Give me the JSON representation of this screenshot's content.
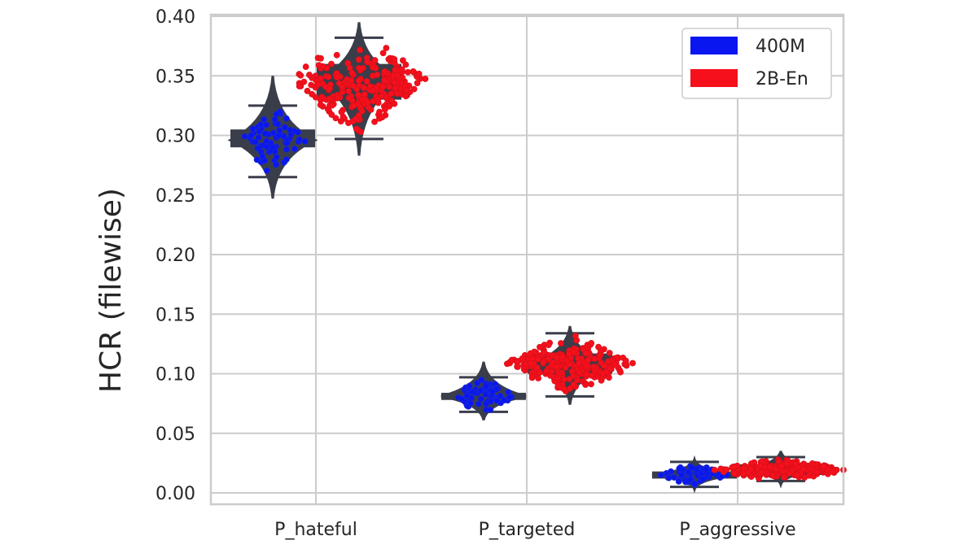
{
  "chart_data": {
    "type": "violin-box-swarm",
    "title": "",
    "xlabel": "",
    "ylabel": "HCR (filewise)",
    "ylim": [
      0.0,
      0.4
    ],
    "yticks": [
      "0.00",
      "0.05",
      "0.10",
      "0.15",
      "0.20",
      "0.25",
      "0.30",
      "0.35",
      "0.40"
    ],
    "categories": [
      "P_hateful",
      "P_targeted",
      "P_aggressive"
    ],
    "grid": true,
    "legend_placement": "top-right",
    "series": [
      {
        "name": "400M",
        "color": "#0a16f0",
        "stats": [
          {
            "min": 0.247,
            "whisker_low": 0.265,
            "q1": 0.29,
            "median": 0.296,
            "q3": 0.305,
            "whisker_high": 0.325,
            "max": 0.35
          },
          {
            "min": 0.061,
            "whisker_low": 0.068,
            "q1": 0.078,
            "median": 0.081,
            "q3": 0.084,
            "whisker_high": 0.097,
            "max": 0.11
          },
          {
            "min": 0.003,
            "whisker_low": 0.005,
            "q1": 0.012,
            "median": 0.015,
            "q3": 0.018,
            "whisker_high": 0.026,
            "max": 0.028
          }
        ]
      },
      {
        "name": "2B-En",
        "color": "#f5101c",
        "stats": [
          {
            "min": 0.283,
            "whisker_low": 0.297,
            "q1": 0.33,
            "median": 0.347,
            "q3": 0.36,
            "whisker_high": 0.382,
            "max": 0.395
          },
          {
            "min": 0.074,
            "whisker_low": 0.081,
            "q1": 0.1,
            "median": 0.108,
            "q3": 0.117,
            "whisker_high": 0.134,
            "max": 0.14
          },
          {
            "min": 0.007,
            "whisker_low": 0.01,
            "q1": 0.015,
            "median": 0.019,
            "q3": 0.024,
            "whisker_high": 0.03,
            "max": 0.035
          }
        ]
      }
    ]
  }
}
